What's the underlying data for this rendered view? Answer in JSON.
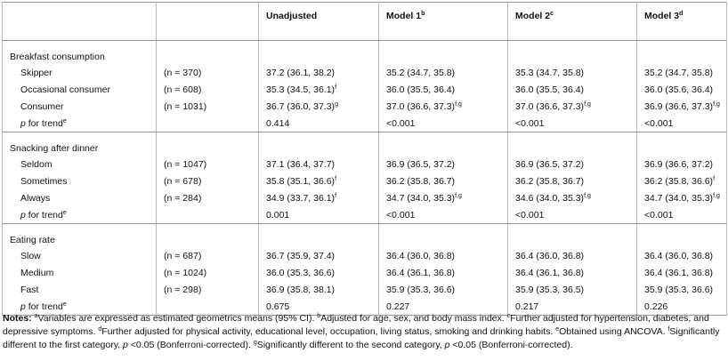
{
  "table": {
    "columns": [
      {
        "text": "Unadjusted"
      },
      {
        "text": "Model 1",
        "sup": "b"
      },
      {
        "text": "Model 2",
        "sup": "c"
      },
      {
        "text": "Model 3",
        "sup": "d"
      }
    ],
    "sections": [
      {
        "title": "Breakfast consumption",
        "rows": [
          {
            "label": "Skipper",
            "n": "(n = 370)",
            "cells": [
              {
                "text": "37.2 (36.1, 38.2)"
              },
              {
                "text": "35.2 (34.7, 35.8)"
              },
              {
                "text": "35.3 (34.7, 35.8)"
              },
              {
                "text": "35.2 (34.7, 35.8)"
              }
            ]
          },
          {
            "label": "Occasional consumer",
            "n": "(n = 608)",
            "cells": [
              {
                "text": "35.3 (34.5, 36.1)",
                "sup": "f"
              },
              {
                "text": "36.0 (35.5, 36.4)"
              },
              {
                "text": "36.0 (35.5, 36.4)"
              },
              {
                "text": "36.0 (35.6, 36.4)"
              }
            ]
          },
          {
            "label": "Consumer",
            "n": "(n = 1031)",
            "cells": [
              {
                "text": "36.7 (36.0, 37.3)",
                "sup": "g"
              },
              {
                "text": "37.0 (36.6, 37.3)",
                "sup": "f,g"
              },
              {
                "text": "37.0 (36.6, 37.3)",
                "sup": "f,g"
              },
              {
                "text": "36.9 (36.6, 37.3)",
                "sup": "f,g"
              }
            ]
          },
          {
            "label": "p for trend",
            "sup": "e",
            "cells": [
              {
                "text": "0.414"
              },
              {
                "text": "<0.001"
              },
              {
                "text": "<0.001"
              },
              {
                "text": "<0.001"
              }
            ]
          }
        ]
      },
      {
        "title": "Snacking after dinner",
        "rows": [
          {
            "label": "Seldom",
            "n": "(n = 1047)",
            "cells": [
              {
                "text": "37.1 (36.4, 37.7)"
              },
              {
                "text": "36.9 (36.5, 37.2)"
              },
              {
                "text": "36.9 (36.5, 37.2)"
              },
              {
                "text": "36.9 (36.6, 37.2)"
              }
            ]
          },
          {
            "label": "Sometimes",
            "n": "(n = 678)",
            "cells": [
              {
                "text": "35.8 (35.1, 36.6)",
                "sup": "f"
              },
              {
                "text": "36.2 (35.8, 36.7)"
              },
              {
                "text": "36.2 (35.8, 36.7)"
              },
              {
                "text": "36.2 (35.8, 36.6)",
                "sup": "f"
              }
            ]
          },
          {
            "label": "Always",
            "n": "(n = 284)",
            "cells": [
              {
                "text": "34.9 (33.7, 36.1)",
                "sup": "f"
              },
              {
                "text": "34.7 (34.0, 35.3)",
                "sup": "f,g"
              },
              {
                "text": "34.6 (34.0, 35.3)",
                "sup": "f,g"
              },
              {
                "text": "34.7 (34.0, 35.3)",
                "sup": "f,g"
              }
            ]
          },
          {
            "label": "p for trend",
            "sup": "e",
            "cells": [
              {
                "text": "0.001"
              },
              {
                "text": "<0.001"
              },
              {
                "text": "<0.001"
              },
              {
                "text": "<0.001"
              }
            ]
          }
        ]
      },
      {
        "title": "Eating rate",
        "rows": [
          {
            "label": "Slow",
            "n": "(n = 687)",
            "cells": [
              {
                "text": "36.7 (35.9, 37.4)"
              },
              {
                "text": "36.4 (36.0, 36.8)"
              },
              {
                "text": "36.4 (36.0, 36.8)"
              },
              {
                "text": "36.4 (36.0, 36.8)"
              }
            ]
          },
          {
            "label": "Medium",
            "n": "(n = 1024)",
            "cells": [
              {
                "text": "36.0 (35.3, 36.6)"
              },
              {
                "text": "36.4 (36.1, 36.8)"
              },
              {
                "text": "36.4 (36.1, 36.8)"
              },
              {
                "text": "36.4 (36.1, 36.8)"
              }
            ]
          },
          {
            "label": "Fast",
            "n": "(n = 298)",
            "cells": [
              {
                "text": "36.9 (35.8, 38.1)"
              },
              {
                "text": "35.9 (35.3, 36.6)"
              },
              {
                "text": "35.9 (35.3, 36.5)"
              },
              {
                "text": "35.9 (35.3, 36.6)"
              }
            ]
          },
          {
            "label": "p for trend",
            "sup": "e",
            "cells": [
              {
                "text": "0.675"
              },
              {
                "text": "0.227"
              },
              {
                "text": "0.217"
              },
              {
                "text": "0.226"
              }
            ]
          }
        ]
      }
    ]
  },
  "notes": [
    {
      "text": "Notes: ",
      "style": "bold"
    },
    {
      "text": "a",
      "style": "sup"
    },
    {
      "text": "Variables are expressed as estimated geometrics means (95% CI). "
    },
    {
      "text": "b",
      "style": "sup"
    },
    {
      "text": "Adjusted for age, sex, and body mass index. "
    },
    {
      "text": "c",
      "style": "sup"
    },
    {
      "text": "Further adjusted for hypertension, diabetes, and depressive symptoms. "
    },
    {
      "text": "d",
      "style": "sup"
    },
    {
      "text": "Further adjusted for physical activity, educational level, occupation, living status, smoking and drinking habits. "
    },
    {
      "text": "e",
      "style": "sup"
    },
    {
      "text": "Obtained using ANCOVA. "
    },
    {
      "text": "f",
      "style": "sup"
    },
    {
      "text": "Significantly different to the first category, "
    },
    {
      "text": "p",
      "style": "italic"
    },
    {
      "text": " <0.05 (Bonferroni-corrected). "
    },
    {
      "text": "g",
      "style": "sup"
    },
    {
      "text": "Significantly different to the second category, "
    },
    {
      "text": "p",
      "style": "italic"
    },
    {
      "text": " <0.05 (Bonferroni-corrected)."
    }
  ]
}
